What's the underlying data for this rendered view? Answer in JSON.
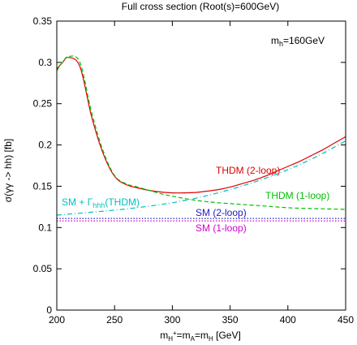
{
  "chart_data": {
    "type": "line",
    "title": "Full cross section (Root(s)=600GeV)",
    "xlabel": {
      "pre": "m",
      "sub1": "H",
      "sup1": "+",
      "mid": "=m",
      "sub2": "A",
      "mid2": "=m",
      "sub3": "H",
      "post": " [GeV]"
    },
    "ylabel": "σ(γγ -> hh)  [fb]",
    "xlim": [
      200,
      450
    ],
    "ylim": [
      0,
      0.35
    ],
    "xticks": [
      200,
      250,
      300,
      350,
      400,
      450
    ],
    "yticks": [
      0,
      0.05,
      0.1,
      0.15,
      0.2,
      0.25,
      0.3,
      0.35
    ],
    "mass_label": {
      "pre": "m",
      "sub": "h",
      "post": "=160GeV"
    },
    "series": [
      {
        "name": "THDM (2-loop)",
        "color": "#e00000",
        "dash": "solid",
        "x": [
          200,
          205,
          210,
          220,
          230,
          240,
          250,
          260,
          270,
          280,
          290,
          300,
          310,
          320,
          330,
          340,
          350,
          360,
          370,
          380,
          390,
          400,
          410,
          420,
          430,
          440,
          450
        ],
        "y": [
          0.292,
          0.3,
          0.306,
          0.295,
          0.235,
          0.19,
          0.162,
          0.152,
          0.148,
          0.145,
          0.143,
          0.142,
          0.142,
          0.1425,
          0.144,
          0.146,
          0.149,
          0.153,
          0.157,
          0.162,
          0.168,
          0.174,
          0.18,
          0.187,
          0.194,
          0.202,
          0.21
        ]
      },
      {
        "name": "THDM (1-loop)",
        "color": "#00c000",
        "dash": "dashed",
        "x": [
          200,
          205,
          210,
          220,
          230,
          240,
          250,
          260,
          270,
          280,
          290,
          300,
          320,
          340,
          360,
          380,
          400,
          420,
          450
        ],
        "y": [
          0.29,
          0.3,
          0.307,
          0.3,
          0.24,
          0.193,
          0.163,
          0.153,
          0.149,
          0.145,
          0.141,
          0.138,
          0.133,
          0.13,
          0.128,
          0.126,
          0.124,
          0.123,
          0.122
        ]
      },
      {
        "name": "SM + Γhhh(THDM)",
        "color": "#00c0c0",
        "dash": "dashdot",
        "x": [
          200,
          225,
          250,
          275,
          300,
          325,
          350,
          375,
          400,
          425,
          450
        ],
        "y": [
          0.115,
          0.118,
          0.121,
          0.125,
          0.13,
          0.137,
          0.146,
          0.157,
          0.17,
          0.186,
          0.205
        ]
      },
      {
        "name": "SM (2-loop)",
        "color": "#2020c0",
        "dash": "dotted",
        "x": [
          200,
          450
        ],
        "y": [
          0.111,
          0.111
        ]
      },
      {
        "name": "SM (1-loop)",
        "color": "#d000d0",
        "dash": "dotted",
        "x": [
          200,
          450
        ],
        "y": [
          0.108,
          0.108
        ]
      }
    ],
    "labels": {
      "thdm2": "THDM (2-loop)",
      "thdm1": "THDM (1-loop)",
      "sm_gamma": {
        "pre": "SM + Γ",
        "sub": "hhh",
        "post": "(THDM)"
      },
      "sm2": "SM (2-loop)",
      "sm1": "SM (1-loop)"
    }
  }
}
